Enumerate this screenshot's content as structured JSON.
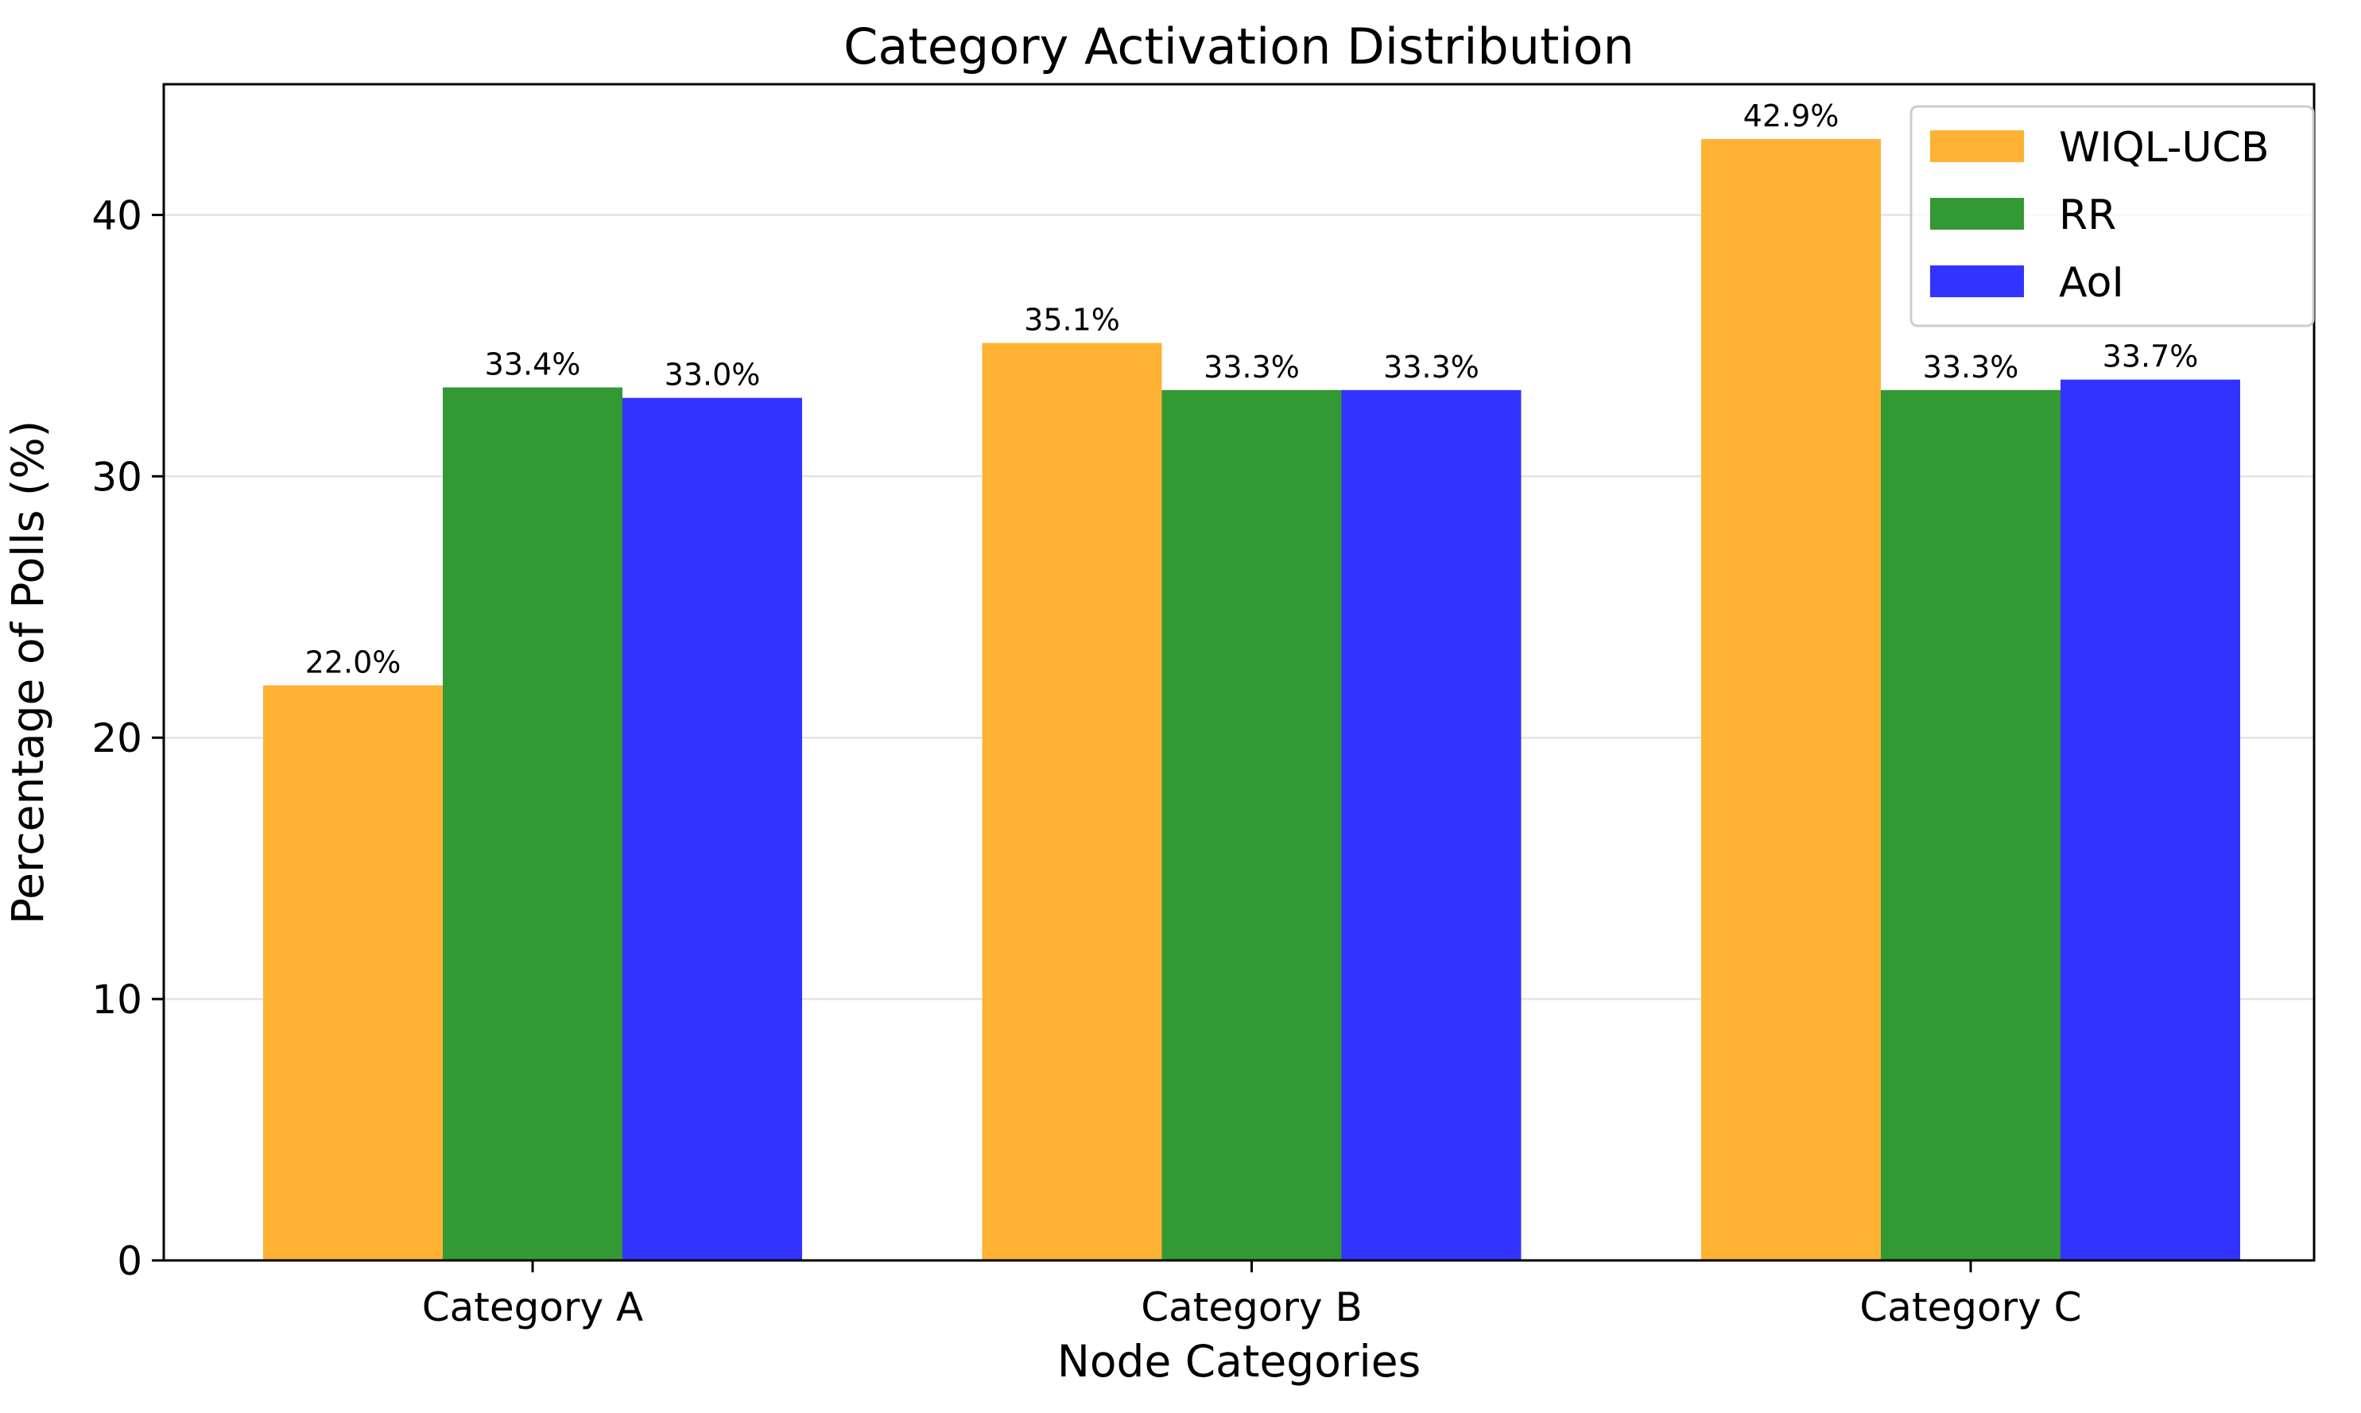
{
  "chart_data": {
    "type": "bar",
    "title": "Category Activation Distribution",
    "xlabel": "Node Categories",
    "ylabel": "Percentage of Polls (%)",
    "categories": [
      "Category A",
      "Category B",
      "Category C"
    ],
    "series": [
      {
        "name": "WIQL-UCB",
        "color": "#FFB133",
        "values": [
          22.0,
          35.1,
          42.9
        ],
        "labels": [
          "22.0%",
          "35.1%",
          "42.9%"
        ]
      },
      {
        "name": "RR",
        "color": "#339933",
        "values": [
          33.4,
          33.3,
          33.3
        ],
        "labels": [
          "33.4%",
          "33.3%",
          "33.3%"
        ]
      },
      {
        "name": "AoI",
        "color": "#3333FF",
        "values": [
          33.0,
          33.3,
          33.7
        ],
        "labels": [
          "33.0%",
          "33.3%",
          "33.7%"
        ]
      }
    ],
    "ylim": [
      0,
      45
    ],
    "yticks": [
      0,
      10,
      20,
      30,
      40
    ],
    "grid": "horizontal",
    "legend_position": "top-right"
  }
}
